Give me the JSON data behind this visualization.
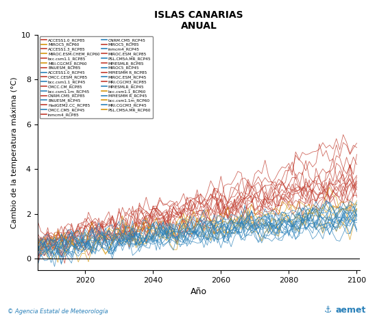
{
  "title": "ISLAS CANARIAS",
  "subtitle": "ANUAL",
  "xlabel": "Año",
  "ylabel": "Cambio de la temperatura máxima (°C)",
  "xlim": [
    2006,
    2101
  ],
  "ylim": [
    -0.5,
    10
  ],
  "yticks": [
    0,
    2,
    4,
    6,
    8,
    10
  ],
  "xticks": [
    2020,
    2040,
    2060,
    2080,
    2100
  ],
  "legend_col1": [
    "ACCESS1.0_RCP85",
    "ACCESS1.3_RCP85",
    "bcc.csm1.1_RCP85",
    "BNUESM_RCP85",
    "CMCC.CESM_RCP85",
    "CMCC.CM_RCP85",
    "CNRM.CM5_RCP85",
    "HadGEM2.CC_RCP85",
    "inmcm4_RCP85",
    "MIROC5_RCP85",
    "MIROC.ESM_RCP85",
    "MPIESMLR_RCP85",
    "MPIESMM R_RCP85",
    "MRI.CGCM3_RCP85",
    "bcc.csm1.1_RCP60",
    "bcc.csm1.1m_RCP60",
    "PSL.CM5A.MR_RCP60"
  ],
  "legend_col2": [
    "MIROC5_RCP60",
    "MIROC.ESM.CHEM_RCP60",
    "MRI.CGCM3_RCP60",
    "ACCESS1.0_RCP45",
    "bcc.csm1.1_RCP45",
    "bcc.csm1.1m_RCP45",
    "BNUESM_RCP45",
    "CMCC.CM5_RCP45",
    "CNRM.CM5_RCP45",
    "inmcm4_RCP45",
    "PSL.CM5A.MR_RCP45",
    "MIROC5_RCP45",
    "MIROC.ESM_RCP45",
    "MPIESMLR_RCP45",
    "MPIESMM R_RCP45",
    "MRI.CGCM3_RCP45"
  ],
  "color_rcp85": "#c0392b",
  "color_rcp60": "#d4950a",
  "color_rcp45": "#2980b9",
  "background_color": "#ffffff",
  "watermark_text": "© Agencia Estatal de Meteorología",
  "seed": 42
}
